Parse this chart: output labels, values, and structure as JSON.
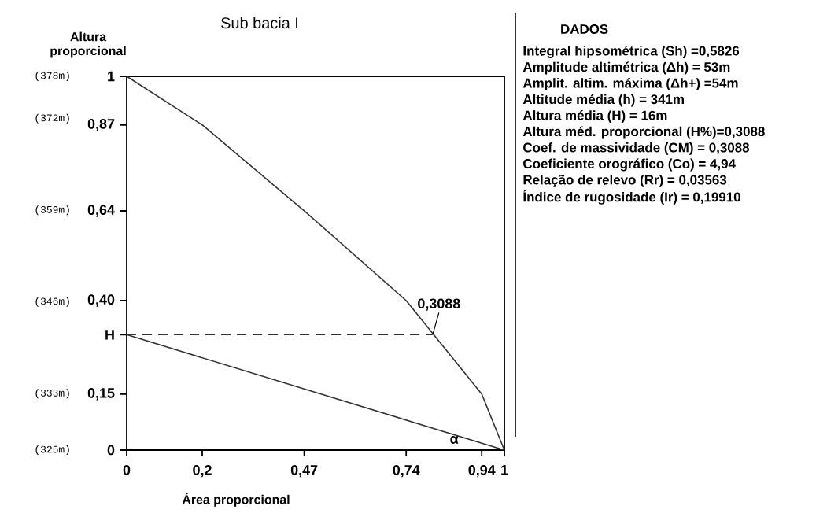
{
  "chart_data": {
    "type": "line",
    "title": "Sub bacia I",
    "xlabel": "Área proporcional",
    "ylabel": "Altura proporcional",
    "xlim": [
      0,
      1
    ],
    "ylim": [
      0,
      1
    ],
    "xticks": [
      0,
      {
        "value": 0.2,
        "label": "0,2"
      },
      {
        "value": 0.47,
        "label": "0,47"
      },
      {
        "value": 0.74,
        "label": "0,74"
      },
      {
        "value": 0.94,
        "label": "0,94"
      },
      1
    ],
    "yticks": [
      0,
      {
        "value": 0.15,
        "label": "0,15"
      },
      {
        "value": 0.3088,
        "label": "H"
      },
      {
        "value": 0.4,
        "label": "0,40"
      },
      {
        "value": 0.64,
        "label": "0,64"
      },
      {
        "value": 0.87,
        "label": "0,87"
      },
      1
    ],
    "y2lim": [
      325,
      378
    ],
    "y2ticks": [
      {
        "value": 325,
        "label": "(325m)"
      },
      {
        "value": 333,
        "label": "(333m)"
      },
      {
        "value": 346,
        "label": "(346m)"
      },
      {
        "value": 359,
        "label": "(359m)"
      },
      {
        "value": 372,
        "label": "(372m)"
      },
      {
        "value": 378,
        "label": "(378m)"
      }
    ],
    "marker": "none",
    "series": [
      {
        "color": "#333333",
        "x": [
          0,
          0.2,
          0.47,
          0.74,
          0.94,
          1
        ],
        "values": [
          1,
          0.87,
          0.64,
          0.4,
          0.15,
          0
        ]
      },
      {
        "color": "#333333",
        "x": [
          0,
          1
        ],
        "values": [
          0.3088,
          0
        ]
      },
      {
        "color": "#333333",
        "line_style": "dashed",
        "x": [
          0,
          0.81
        ],
        "values": [
          0.3088,
          0.3088
        ]
      }
    ],
    "annotations": [
      {
        "text": "0,3088",
        "x": 0.81,
        "y": 0.3088
      },
      "α",
      "DADOS",
      "Integral hipsométrica (Sh) =0,5826",
      "Amplitude altimétrica (Δh) = 53m",
      "Amplit. altim. máxima (Δh+) =54m",
      "Altitude média (h) = 341m",
      "Altura média (H) = 16m",
      "Altura méd. proporcional (H%)=0,3088",
      "Coef. de massividade (CM) = 0,3088",
      "Coeficiente orográfico (Co) = 4,94",
      "Relação de relevo (Rr) = 0,03563",
      "Índice de rugosidade (Ir) = 0,19910"
    ]
  }
}
